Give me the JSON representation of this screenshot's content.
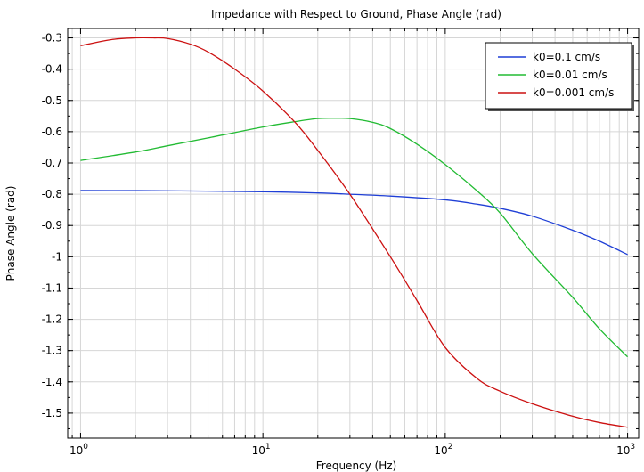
{
  "chart_data": {
    "type": "line",
    "title": "Impedance with Respect to Ground, Phase Angle (rad)",
    "xlabel": "Frequency (Hz)",
    "ylabel": "Phase Angle (rad)",
    "x_scale": "log",
    "xlim": [
      0.85,
      1150
    ],
    "ylim": [
      -1.58,
      -0.27
    ],
    "grid": true,
    "legend_position": "top-right",
    "x_ticks": [
      {
        "value": 1,
        "base": "10",
        "exp": "0"
      },
      {
        "value": 10,
        "base": "10",
        "exp": "1"
      },
      {
        "value": 100,
        "base": "10",
        "exp": "2"
      },
      {
        "value": 1000,
        "base": "10",
        "exp": "3"
      }
    ],
    "y_ticks": [
      {
        "value": -0.3,
        "label": "-0.3"
      },
      {
        "value": -0.4,
        "label": "-0.4"
      },
      {
        "value": -0.5,
        "label": "-0.5"
      },
      {
        "value": -0.6,
        "label": "-0.6"
      },
      {
        "value": -0.7,
        "label": "-0.7"
      },
      {
        "value": -0.8,
        "label": "-0.8"
      },
      {
        "value": -0.9,
        "label": "-0.9"
      },
      {
        "value": -1.0,
        "label": "-1"
      },
      {
        "value": -1.1,
        "label": "-1.1"
      },
      {
        "value": -1.2,
        "label": "-1.2"
      },
      {
        "value": -1.3,
        "label": "-1.3"
      },
      {
        "value": -1.4,
        "label": "-1.4"
      },
      {
        "value": -1.5,
        "label": "-1.5"
      }
    ],
    "series": [
      {
        "name": "k0=0.1 cm/s",
        "color": "#1f3fd6",
        "x": [
          1,
          3,
          10,
          20,
          30,
          50,
          100,
          150,
          200,
          300,
          500,
          700,
          1000
        ],
        "y": [
          -0.788,
          -0.789,
          -0.792,
          -0.796,
          -0.8,
          -0.806,
          -0.818,
          -0.832,
          -0.845,
          -0.87,
          -0.915,
          -0.95,
          -0.993
        ]
      },
      {
        "name": "k0=0.01 cm/s",
        "color": "#22bb33",
        "x": [
          1,
          2,
          3,
          5,
          10,
          15,
          20,
          25,
          30,
          40,
          50,
          70,
          100,
          150,
          200,
          300,
          500,
          700,
          1000
        ],
        "y": [
          -0.692,
          -0.665,
          -0.645,
          -0.62,
          -0.585,
          -0.568,
          -0.558,
          -0.557,
          -0.558,
          -0.57,
          -0.59,
          -0.64,
          -0.705,
          -0.79,
          -0.86,
          -0.99,
          -1.13,
          -1.23,
          -1.32
        ]
      },
      {
        "name": "k0=0.001 cm/s",
        "color": "#cc1111",
        "x": [
          1,
          1.5,
          2,
          2.5,
          3,
          4,
          5,
          7,
          10,
          15,
          20,
          30,
          50,
          70,
          100,
          150,
          200,
          300,
          500,
          700,
          1000
        ],
        "y": [
          -0.325,
          -0.305,
          -0.3,
          -0.3,
          -0.302,
          -0.32,
          -0.345,
          -0.4,
          -0.47,
          -0.57,
          -0.66,
          -0.8,
          -1.0,
          -1.14,
          -1.29,
          -1.39,
          -1.43,
          -1.47,
          -1.51,
          -1.53,
          -1.545
        ]
      }
    ]
  }
}
